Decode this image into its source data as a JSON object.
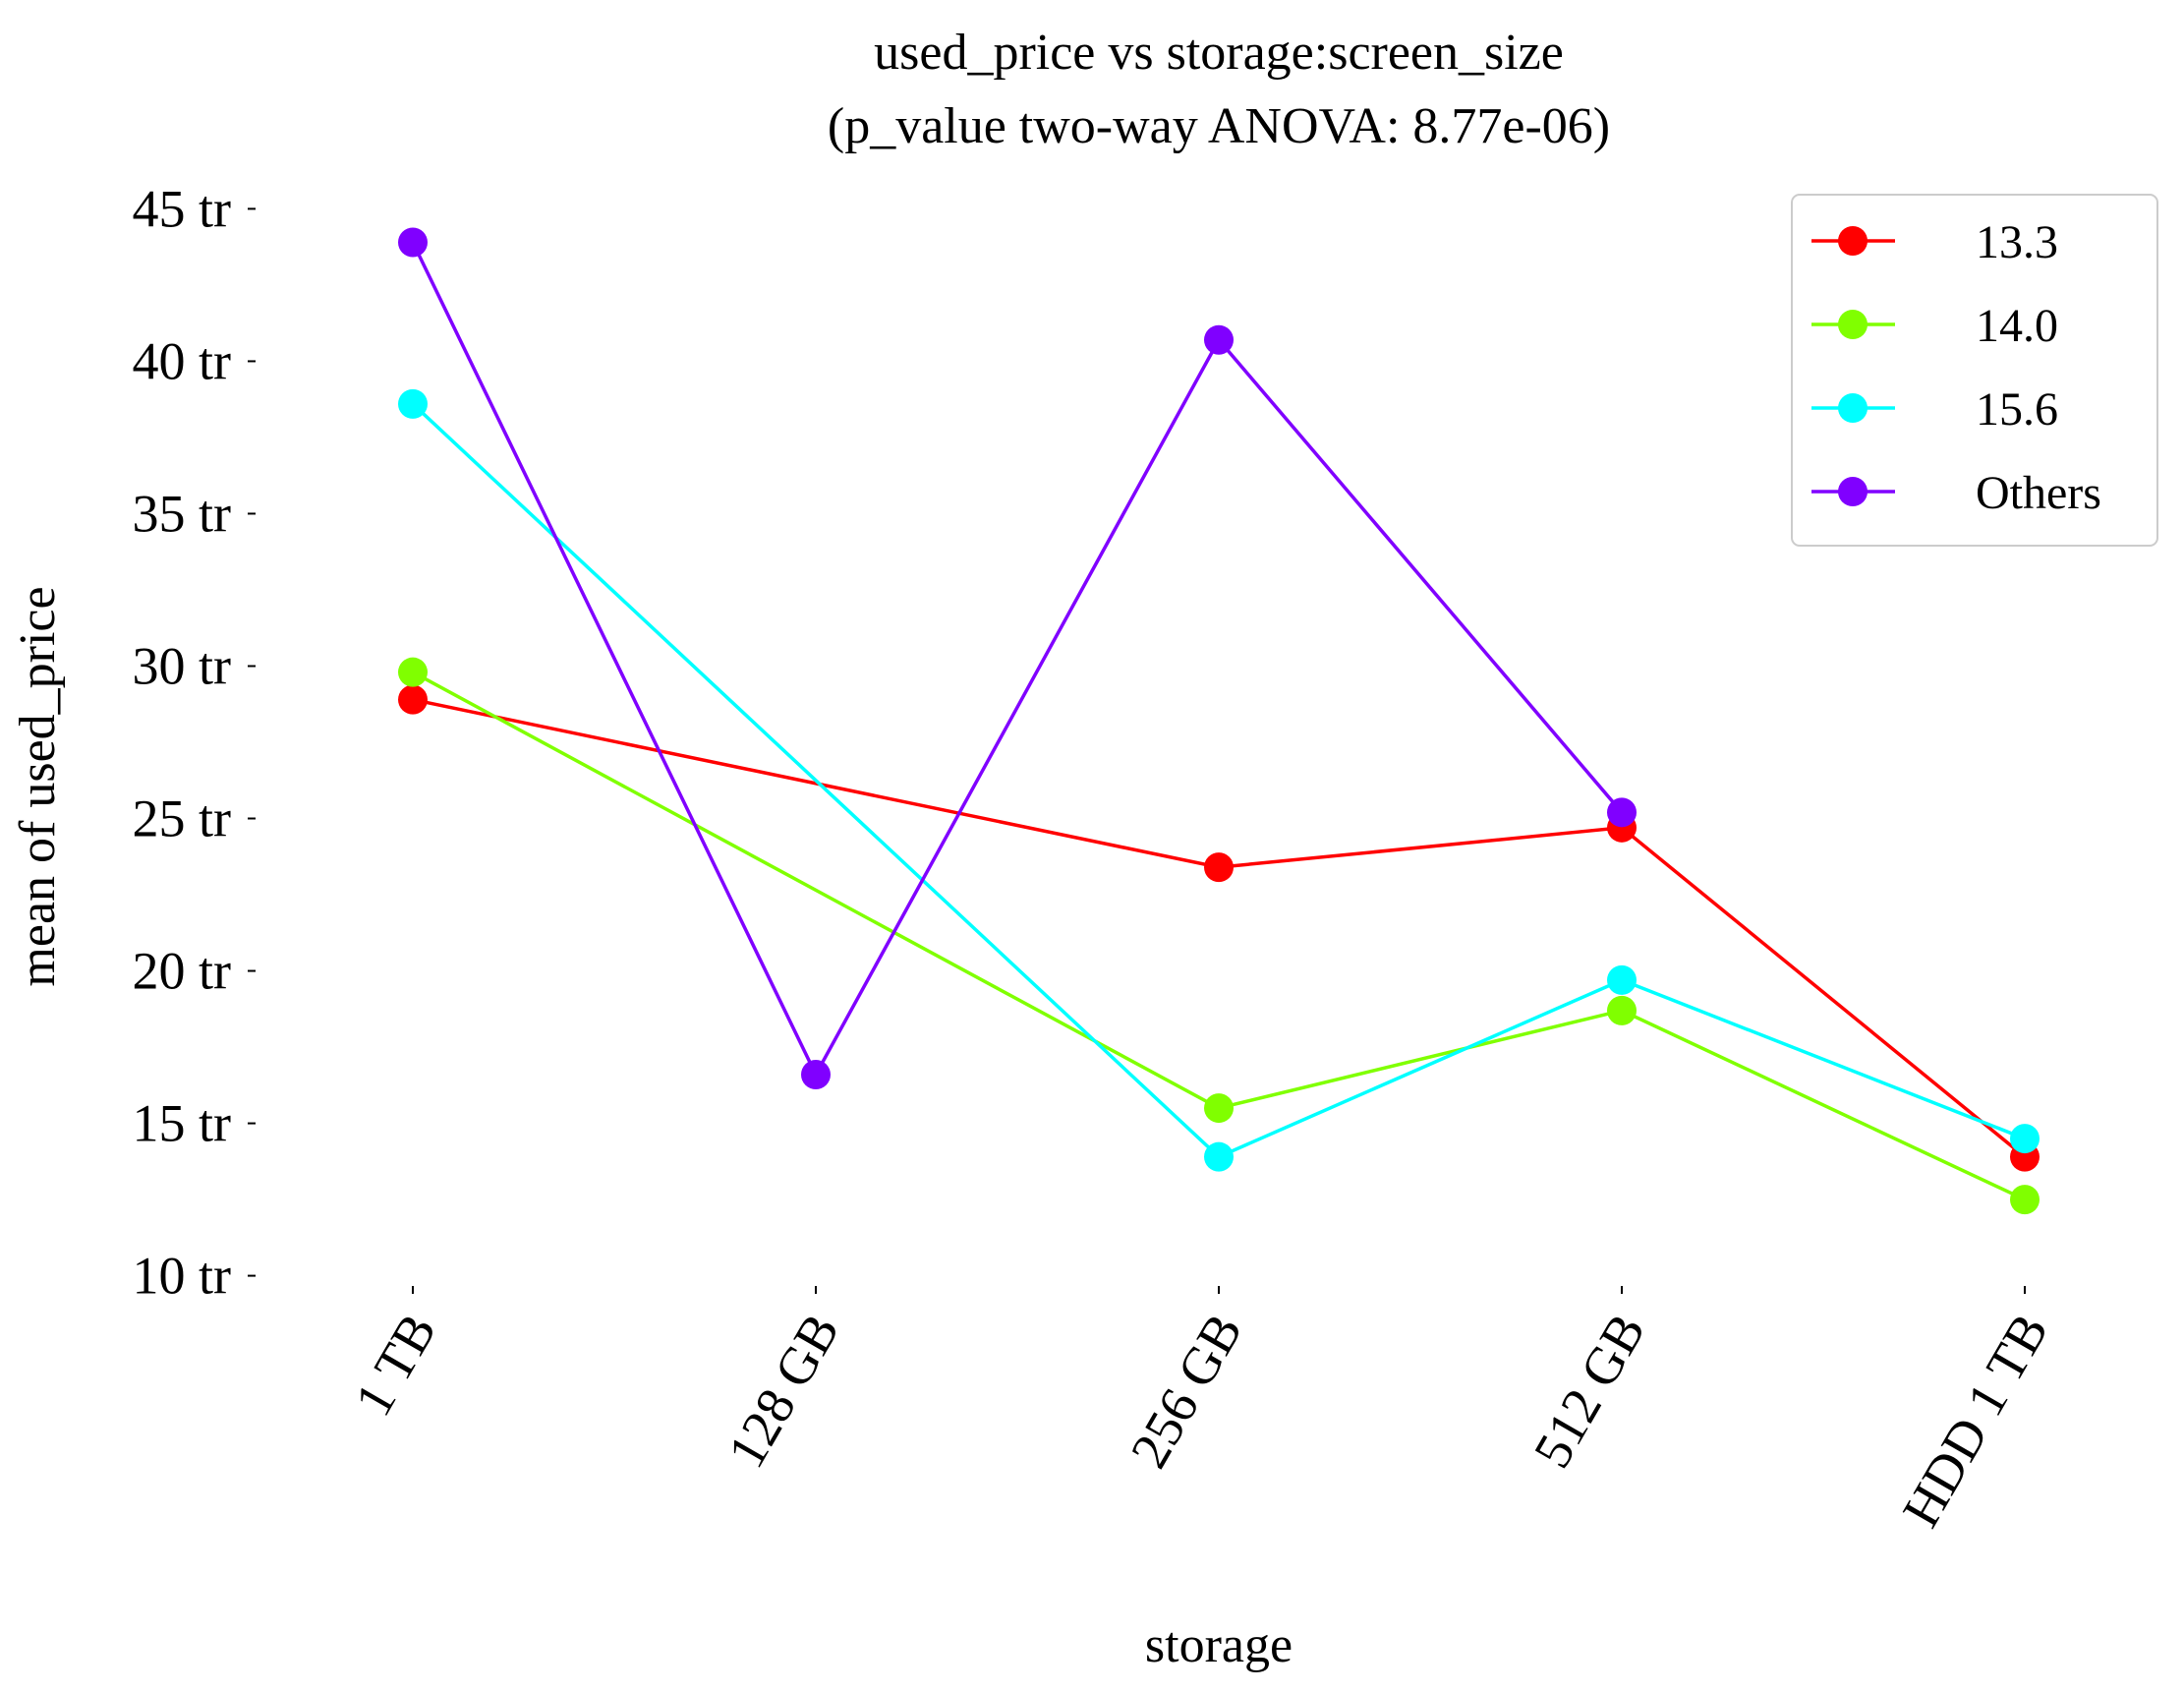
{
  "chart_data": {
    "type": "line",
    "title": "used_price vs storage:screen_size",
    "subtitle": "(p_value two-way ANOVA: 8.77e-06)",
    "xlabel": "storage",
    "ylabel": "mean of used_price",
    "categories": [
      "1 TB",
      "128 GB",
      "256 GB",
      "512 GB",
      "HDD 1 TB"
    ],
    "yticks": [
      10,
      15,
      20,
      25,
      30,
      35,
      40,
      45
    ],
    "ytick_labels": [
      "10 tr",
      "15 tr",
      "20 tr",
      "25 tr",
      "30 tr",
      "35 tr",
      "40 tr",
      "45 tr"
    ],
    "ylim": [
      9.6,
      45.4
    ],
    "grid": false,
    "legend": {
      "placement": "top-right",
      "entries": [
        "13.3",
        "14.0",
        "15.6",
        "Others"
      ]
    },
    "series": [
      {
        "name": "13.3",
        "color": "#ff0000",
        "values": [
          28.9,
          null,
          23.4,
          24.7,
          13.9
        ]
      },
      {
        "name": "14.0",
        "color": "#80ff00",
        "values": [
          29.8,
          null,
          15.5,
          18.7,
          12.5
        ]
      },
      {
        "name": "15.6",
        "color": "#00ffff",
        "values": [
          38.6,
          null,
          13.9,
          19.7,
          14.5
        ]
      },
      {
        "name": "Others",
        "color": "#8000ff",
        "values": [
          43.9,
          16.6,
          40.7,
          25.2,
          null
        ]
      }
    ]
  }
}
